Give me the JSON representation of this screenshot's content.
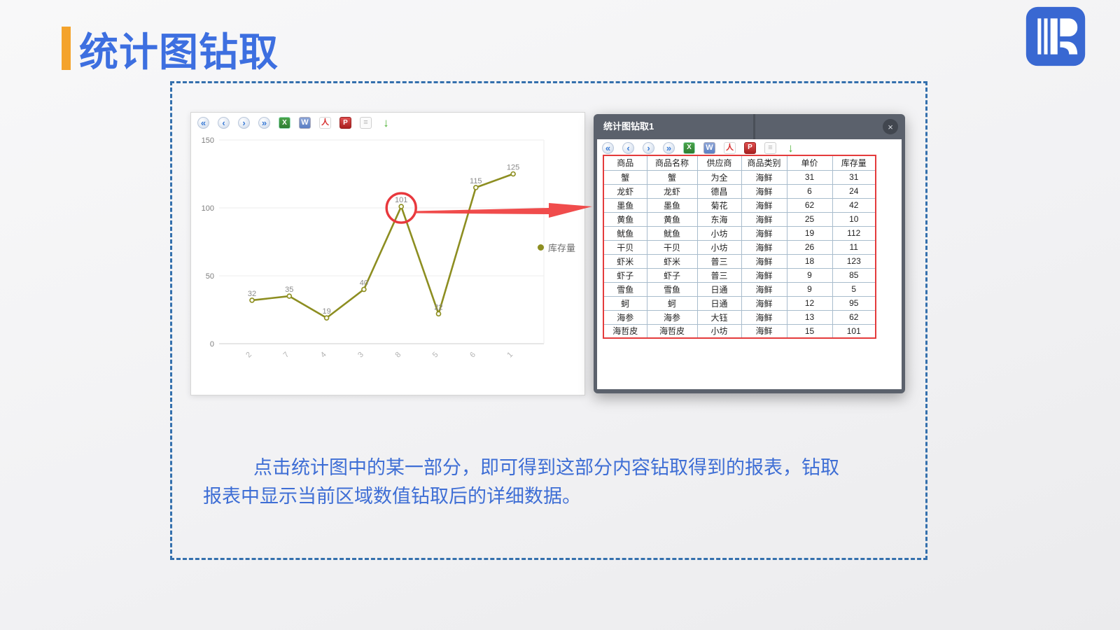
{
  "slide": {
    "title": "统计图钻取",
    "description_line1": "点击统计图中的某一部分，即可得到这部分内容钻取得到的报表，钻取",
    "description_line2": "报表中显示当前区域数值钻取后的详细数据。",
    "colors": {
      "title_blue": "#3d6fe0",
      "accent_orange": "#f4a32c",
      "dashed_border_blue": "#3470ad",
      "description_blue": "#3e6ed5",
      "popup_frame_gray": "#5b616c",
      "table_highlight_red": "#e43b3c",
      "chart_line_olive": "#8d8e21",
      "annotation_red": "#e8383d"
    }
  },
  "toolbar": {
    "icons": [
      {
        "name": "first-page-icon",
        "kind": "nav",
        "glyph": "«"
      },
      {
        "name": "prev-page-icon",
        "kind": "nav",
        "glyph": "‹"
      },
      {
        "name": "next-page-icon",
        "kind": "nav",
        "glyph": "›"
      },
      {
        "name": "last-page-icon",
        "kind": "nav",
        "glyph": "»"
      },
      {
        "name": "excel-export-icon",
        "kind": "excel",
        "glyph": "X"
      },
      {
        "name": "word-export-icon",
        "kind": "word",
        "glyph": "W"
      },
      {
        "name": "pdf-export-icon",
        "kind": "pdf",
        "glyph": "人"
      },
      {
        "name": "print-icon",
        "kind": "print",
        "glyph": "P"
      },
      {
        "name": "page-setup-icon",
        "kind": "page",
        "glyph": "≡"
      },
      {
        "name": "export-download-icon",
        "kind": "download",
        "glyph": "↓"
      }
    ]
  },
  "chart_data": {
    "type": "line",
    "x": [
      "2",
      "7",
      "4",
      "3",
      "8",
      "5",
      "6",
      "1"
    ],
    "series": [
      {
        "name": "库存量",
        "values": [
          32,
          35,
          19,
          40,
          101,
          22,
          115,
          125
        ]
      }
    ],
    "ylim": [
      0,
      150
    ],
    "yticks": [
      0,
      50,
      100,
      150
    ],
    "grid": true,
    "legend_position": "right",
    "line_color": "#8d8e21",
    "annotated_point": {
      "x_label": "8",
      "value": 101,
      "highlight_color": "#e8383d"
    }
  },
  "popup": {
    "title": "统计图钻取1",
    "close_glyph": "×",
    "table": {
      "headers": [
        "商品",
        "商品名称",
        "供应商",
        "商品类别",
        "单价",
        "库存量"
      ],
      "rows": [
        [
          "蟹",
          "蟹",
          "为全",
          "海鲜",
          "31",
          "31"
        ],
        [
          "龙虾",
          "龙虾",
          "德昌",
          "海鲜",
          "6",
          "24"
        ],
        [
          "墨鱼",
          "墨鱼",
          "菊花",
          "海鲜",
          "62",
          "42"
        ],
        [
          "黄鱼",
          "黄鱼",
          "东海",
          "海鲜",
          "25",
          "10"
        ],
        [
          "鱿鱼",
          "鱿鱼",
          "小坊",
          "海鲜",
          "19",
          "112"
        ],
        [
          "干贝",
          "干贝",
          "小坊",
          "海鲜",
          "26",
          "11"
        ],
        [
          "虾米",
          "虾米",
          "普三",
          "海鲜",
          "18",
          "123"
        ],
        [
          "虾子",
          "虾子",
          "普三",
          "海鲜",
          "9",
          "85"
        ],
        [
          "雪鱼",
          "雪鱼",
          "日通",
          "海鲜",
          "9",
          "5"
        ],
        [
          "蚵",
          "蚵",
          "日通",
          "海鲜",
          "12",
          "95"
        ],
        [
          "海参",
          "海参",
          "大钰",
          "海鲜",
          "13",
          "62"
        ],
        [
          "海哲皮",
          "海哲皮",
          "小坊",
          "海鲜",
          "15",
          "101"
        ]
      ]
    }
  }
}
